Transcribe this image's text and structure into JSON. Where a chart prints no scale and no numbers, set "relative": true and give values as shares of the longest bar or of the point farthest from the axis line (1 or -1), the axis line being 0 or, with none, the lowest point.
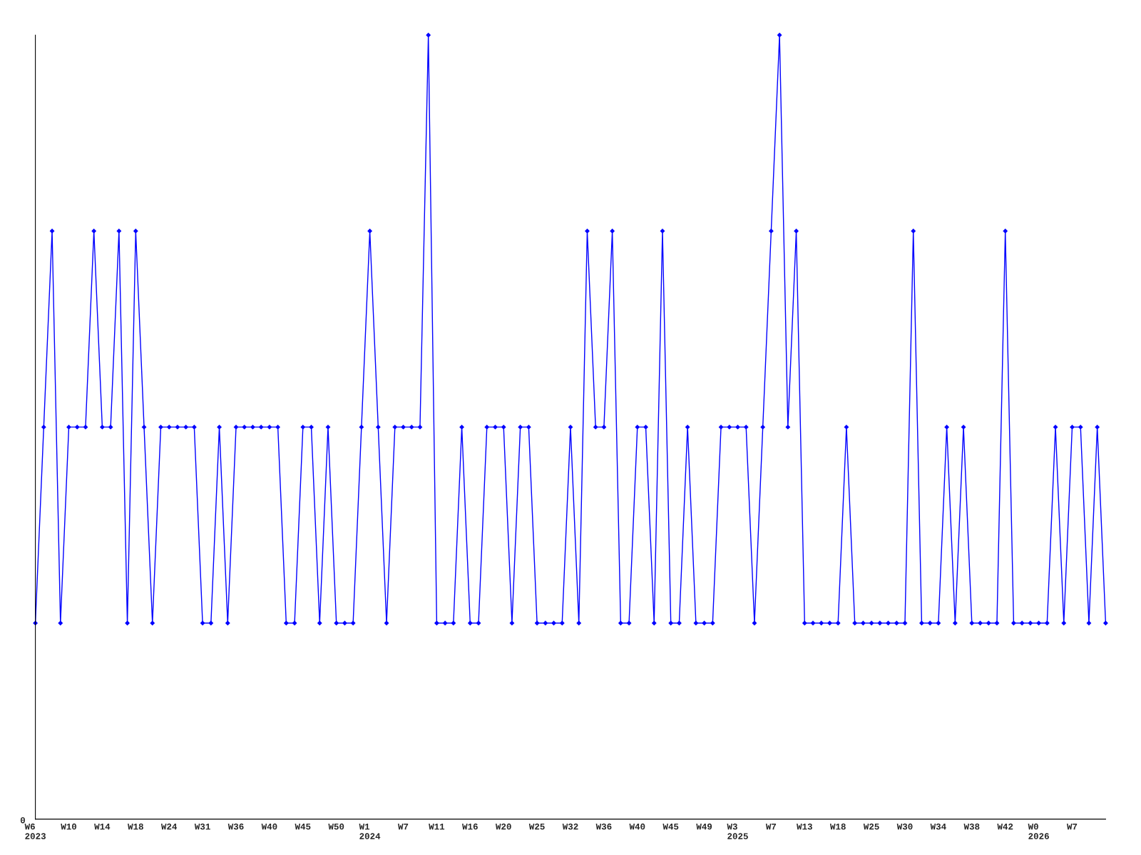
{
  "chart_data": {
    "type": "line",
    "relative": true,
    "annotations": [
      "0"
    ],
    "marker": "diamond",
    "line_style": "solid",
    "grid": false,
    "legend": false,
    "categories": [
      "W6\n2023",
      null,
      null,
      null,
      "W10",
      null,
      null,
      null,
      "W14",
      null,
      null,
      null,
      "W18",
      null,
      null,
      null,
      "W24",
      null,
      null,
      null,
      "W31",
      null,
      null,
      null,
      "W36",
      null,
      null,
      null,
      "W40",
      null,
      null,
      null,
      "W45",
      null,
      null,
      null,
      "W50",
      null,
      null,
      null,
      "W1\n2024",
      null,
      null,
      null,
      "W7",
      null,
      null,
      null,
      "W11",
      null,
      null,
      null,
      "W16",
      null,
      null,
      null,
      "W20",
      null,
      null,
      null,
      "W25",
      null,
      null,
      null,
      "W32",
      null,
      null,
      null,
      "W36",
      null,
      null,
      null,
      "W40",
      null,
      null,
      null,
      "W45",
      null,
      null,
      null,
      "W49",
      null,
      null,
      null,
      "W3\n2025",
      null,
      null,
      null,
      "W7",
      null,
      null,
      null,
      "W13",
      null,
      null,
      null,
      "W18",
      null,
      null,
      null,
      "W25",
      null,
      null,
      null,
      "W30",
      null,
      null,
      null,
      "W34",
      null,
      null,
      null,
      "W38",
      null,
      null,
      null,
      "W42",
      null,
      null,
      null,
      "W0\n2026",
      null,
      null,
      null,
      "W7",
      null,
      null,
      null,
      null
    ],
    "series": [
      {
        "color": "#0000ff",
        "values": [
          0.25,
          0.5,
          0.75,
          0.25,
          0.5,
          0.5,
          0.5,
          0.75,
          0.5,
          0.5,
          0.75,
          0.25,
          0.75,
          0.5,
          0.25,
          0.5,
          0.5,
          0.5,
          0.5,
          0.5,
          0.25,
          0.25,
          0.5,
          0.25,
          0.5,
          0.5,
          0.5,
          0.5,
          0.5,
          0.5,
          0.25,
          0.25,
          0.5,
          0.5,
          0.25,
          0.5,
          0.25,
          0.25,
          0.25,
          0.5,
          0.75,
          0.5,
          0.25,
          0.5,
          0.5,
          0.5,
          0.5,
          1,
          0.25,
          0.25,
          0.25,
          0.5,
          0.25,
          0.25,
          0.5,
          0.5,
          0.5,
          0.25,
          0.5,
          0.5,
          0.25,
          0.25,
          0.25,
          0.25,
          0.5,
          0.25,
          0.75,
          0.5,
          0.5,
          0.75,
          0.25,
          0.25,
          0.5,
          0.5,
          0.25,
          0.75,
          0.25,
          0.25,
          0.5,
          0.25,
          0.25,
          0.25,
          0.5,
          0.5,
          0.5,
          0.5,
          0.25,
          0.5,
          0.75,
          1,
          0.5,
          0.75,
          0.25,
          0.25,
          0.25,
          0.25,
          0.25,
          0.5,
          0.25,
          0.25,
          0.25,
          0.25,
          0.25,
          0.25,
          0.25,
          0.75,
          0.25,
          0.25,
          0.25,
          0.5,
          0.25,
          0.5,
          0.25,
          0.25,
          0.25,
          0.25,
          0.75,
          0.25,
          0.25,
          0.25,
          0.25,
          0.25,
          0.5,
          0.25,
          0.5,
          0.5,
          0.25,
          0.5,
          0.25
        ]
      }
    ]
  }
}
